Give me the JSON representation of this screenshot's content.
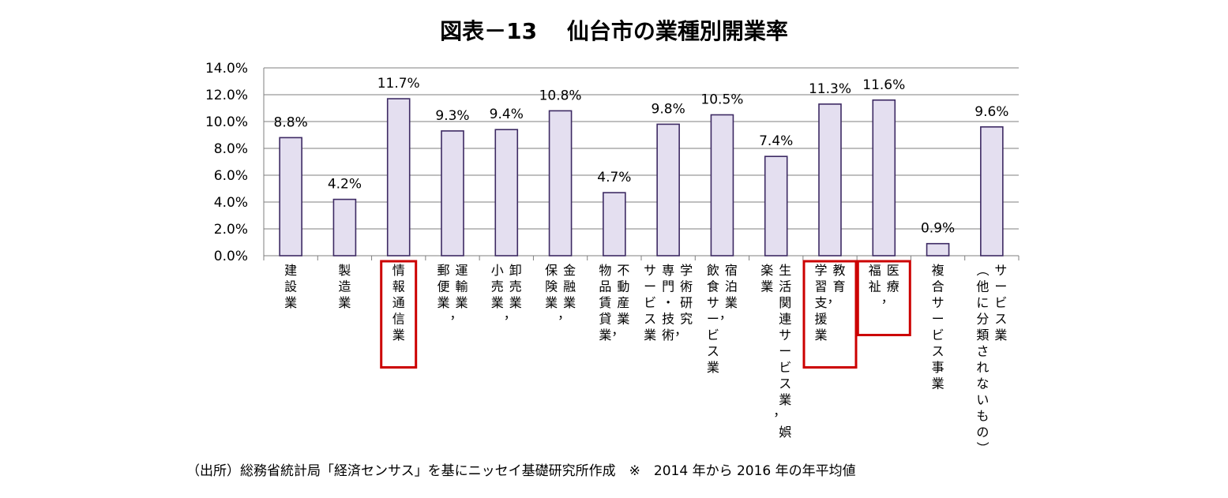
{
  "title": "図表－13　 仙台市の業種別開業率",
  "source": "（出所）総務省統計局「経済センサス」を基にニッセイ基礎研究所作成　※　2014 年から 2016 年の年平均値",
  "chart_data": {
    "type": "bar",
    "title": "図表－13　 仙台市の業種別開業率",
    "xlabel": "",
    "ylabel": "",
    "ylim": [
      0,
      14
    ],
    "yticks": [
      "0.0%",
      "2.0%",
      "4.0%",
      "6.0%",
      "8.0%",
      "10.0%",
      "12.0%",
      "14.0%"
    ],
    "grid": true,
    "bar_color": "#e4dff0",
    "bar_edge_color": "#3d2a63",
    "highlight_color": "#cc0000",
    "categories": [
      {
        "columns": [
          "建設業"
        ],
        "highlight": false
      },
      {
        "columns": [
          "製造業"
        ],
        "highlight": false
      },
      {
        "columns": [
          "情報通信業"
        ],
        "highlight": true
      },
      {
        "columns": [
          "運輸業，",
          "郵便業"
        ],
        "highlight": false
      },
      {
        "columns": [
          "卸売業，",
          "小売業"
        ],
        "highlight": false
      },
      {
        "columns": [
          "金融業，",
          "保険業"
        ],
        "highlight": false
      },
      {
        "columns": [
          "不動産業，",
          "物品賃貸業"
        ],
        "highlight": false
      },
      {
        "columns": [
          "学術研究，",
          "専門・技術",
          "サービス業"
        ],
        "highlight": false
      },
      {
        "columns": [
          "宿泊業，",
          "飲食サービス業"
        ],
        "highlight": false
      },
      {
        "columns": [
          "生活関連サービス業，娯",
          "楽業"
        ],
        "highlight": false
      },
      {
        "columns": [
          "教育，",
          "学習支援業"
        ],
        "highlight": true
      },
      {
        "columns": [
          "医療，",
          "福祉"
        ],
        "highlight": true
      },
      {
        "columns": [
          "複合サービス事業"
        ],
        "highlight": false
      },
      {
        "columns": [
          "サービス業",
          "（他に分類されないもの）"
        ],
        "highlight": false
      }
    ],
    "values": [
      8.8,
      4.2,
      11.7,
      9.3,
      9.4,
      10.8,
      4.7,
      9.8,
      10.5,
      7.4,
      11.3,
      11.6,
      0.9,
      9.6
    ],
    "labels": [
      "8.8%",
      "4.2%",
      "11.7%",
      "9.3%",
      "9.4%",
      "10.8%",
      "4.7%",
      "9.8%",
      "10.5%",
      "7.4%",
      "11.3%",
      "11.6%",
      "0.9%",
      "9.6%"
    ]
  }
}
